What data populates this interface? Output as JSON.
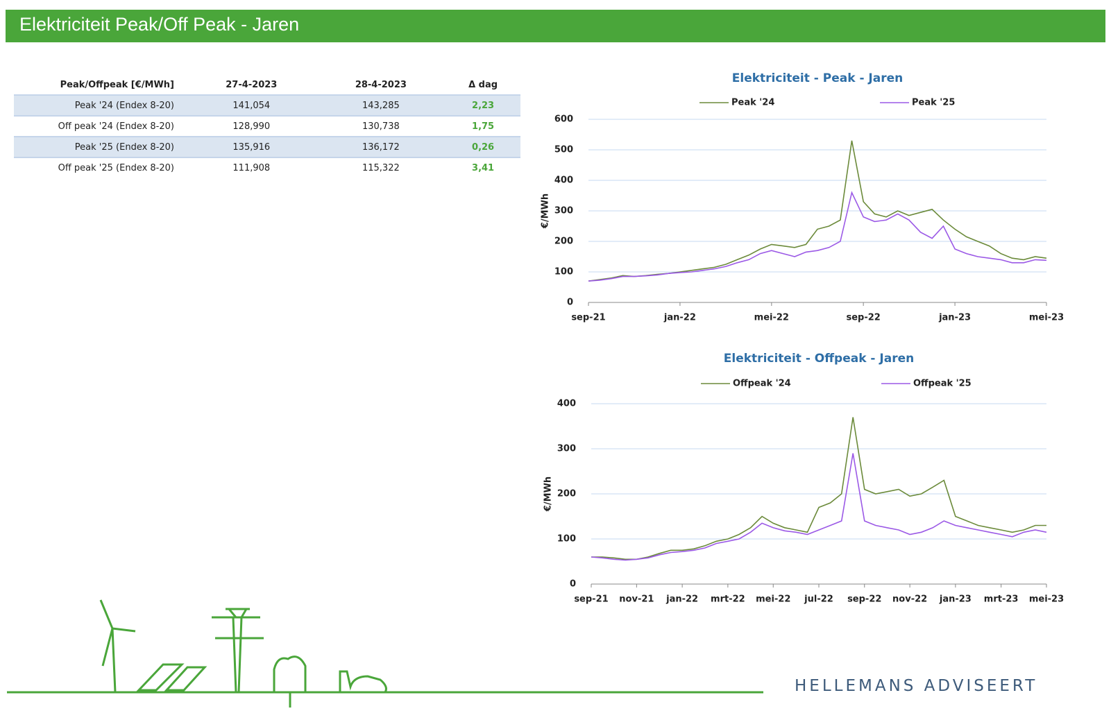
{
  "header": {
    "title": "Elektriciteit Peak/Off Peak - Jaren"
  },
  "table": {
    "headers": [
      "Peak/Offpeak [€/MWh]",
      "27-4-2023",
      "28-4-2023",
      "Δ dag"
    ],
    "rows": [
      [
        "Peak '24  (Endex 8-20)",
        "141,054",
        "143,285",
        "2,23"
      ],
      [
        "Off peak '24  (Endex 8-20)",
        "128,990",
        "130,738",
        "1,75"
      ],
      [
        "Peak '25  (Endex 8-20)",
        "135,916",
        "136,172",
        "0,26"
      ],
      [
        "Off peak '25  (Endex 8-20)",
        "111,908",
        "115,322",
        "3,41"
      ]
    ]
  },
  "chart_data": [
    {
      "type": "line",
      "title": "Elektriciteit - Peak - Jaren",
      "y_label": "€/MWh",
      "legend": "top",
      "x": [
        2021.667,
        2021.708,
        2021.75,
        2021.792,
        2021.833,
        2021.875,
        2021.917,
        2021.958,
        2022,
        2022.042,
        2022.083,
        2022.125,
        2022.167,
        2022.208,
        2022.25,
        2022.292,
        2022.333,
        2022.375,
        2022.417,
        2022.458,
        2022.5,
        2022.542,
        2022.583,
        2022.625,
        2022.667,
        2022.708,
        2022.75,
        2022.792,
        2022.833,
        2022.875,
        2022.917,
        2022.958,
        2023,
        2023.042,
        2023.083,
        2023.125,
        2023.167,
        2023.208,
        2023.25,
        2023.292,
        2023.333
      ],
      "xlim": [
        2021.667,
        2023.333
      ],
      "xticks": [
        {
          "value": 2021.667,
          "label": "sep-21"
        },
        {
          "value": 2022,
          "label": "jan-22"
        },
        {
          "value": 2022.333,
          "label": "mei-22"
        },
        {
          "value": 2022.667,
          "label": "sep-22"
        },
        {
          "value": 2023,
          "label": "jan-23"
        },
        {
          "value": 2023.333,
          "label": "mei-23"
        }
      ],
      "ylim": [
        0,
        600
      ],
      "yticks": [
        0,
        100,
        200,
        300,
        400,
        500,
        600
      ],
      "grid": true,
      "series": [
        {
          "name": "Peak '24",
          "color": "#6b8a3a",
          "values": [
            70,
            75,
            80,
            88,
            85,
            88,
            92,
            95,
            100,
            105,
            110,
            115,
            125,
            140,
            155,
            175,
            190,
            185,
            180,
            190,
            240,
            250,
            270,
            530,
            330,
            290,
            280,
            300,
            285,
            295,
            305,
            270,
            240,
            215,
            200,
            185,
            160,
            145,
            140,
            150,
            145
          ]
        },
        {
          "name": "Peak '25",
          "color": "#9b59e6",
          "values": [
            70,
            73,
            78,
            85,
            85,
            87,
            90,
            95,
            98,
            100,
            105,
            110,
            118,
            130,
            140,
            160,
            170,
            160,
            150,
            165,
            170,
            180,
            200,
            360,
            280,
            265,
            270,
            290,
            270,
            230,
            210,
            250,
            175,
            160,
            150,
            145,
            140,
            130,
            130,
            140,
            138
          ]
        }
      ]
    },
    {
      "type": "line",
      "title": "Elektriciteit - Offpeak - Jaren",
      "y_label": "€/MWh",
      "legend": "top",
      "x": [
        2021.667,
        2021.708,
        2021.75,
        2021.792,
        2021.833,
        2021.875,
        2021.917,
        2021.958,
        2022,
        2022.042,
        2022.083,
        2022.125,
        2022.167,
        2022.208,
        2022.25,
        2022.292,
        2022.333,
        2022.375,
        2022.417,
        2022.458,
        2022.5,
        2022.542,
        2022.583,
        2022.625,
        2022.667,
        2022.708,
        2022.75,
        2022.792,
        2022.833,
        2022.875,
        2022.917,
        2022.958,
        2023,
        2023.042,
        2023.083,
        2023.125,
        2023.167,
        2023.208,
        2023.25,
        2023.292,
        2023.333
      ],
      "xlim": [
        2021.667,
        2023.333
      ],
      "xticks": [
        {
          "value": 2021.667,
          "label": "sep-21"
        },
        {
          "value": 2021.833,
          "label": "nov-21"
        },
        {
          "value": 2022,
          "label": "jan-22"
        },
        {
          "value": 2022.167,
          "label": "mrt-22"
        },
        {
          "value": 2022.333,
          "label": "mei-22"
        },
        {
          "value": 2022.5,
          "label": "jul-22"
        },
        {
          "value": 2022.667,
          "label": "sep-22"
        },
        {
          "value": 2022.833,
          "label": "nov-22"
        },
        {
          "value": 2023,
          "label": "jan-23"
        },
        {
          "value": 2023.167,
          "label": "mrt-23"
        },
        {
          "value": 2023.333,
          "label": "mei-23"
        }
      ],
      "ylim": [
        0,
        400
      ],
      "yticks": [
        0,
        100,
        200,
        300,
        400
      ],
      "grid": true,
      "series": [
        {
          "name": "Offpeak '24",
          "color": "#6b8a3a",
          "values": [
            60,
            60,
            58,
            55,
            55,
            60,
            68,
            75,
            75,
            78,
            85,
            95,
            100,
            110,
            125,
            150,
            135,
            125,
            120,
            115,
            170,
            180,
            200,
            370,
            210,
            200,
            205,
            210,
            195,
            200,
            215,
            230,
            150,
            140,
            130,
            125,
            120,
            115,
            120,
            130,
            130
          ]
        },
        {
          "name": "Offpeak '25",
          "color": "#9b59e6",
          "values": [
            60,
            58,
            55,
            53,
            55,
            58,
            65,
            70,
            72,
            75,
            80,
            90,
            95,
            100,
            115,
            135,
            125,
            118,
            115,
            110,
            120,
            130,
            140,
            290,
            140,
            130,
            125,
            120,
            110,
            115,
            125,
            140,
            130,
            125,
            120,
            115,
            110,
            105,
            115,
            120,
            115
          ]
        }
      ]
    }
  ],
  "footer": {
    "brand": "HELLEMANS ADVISEERT"
  }
}
